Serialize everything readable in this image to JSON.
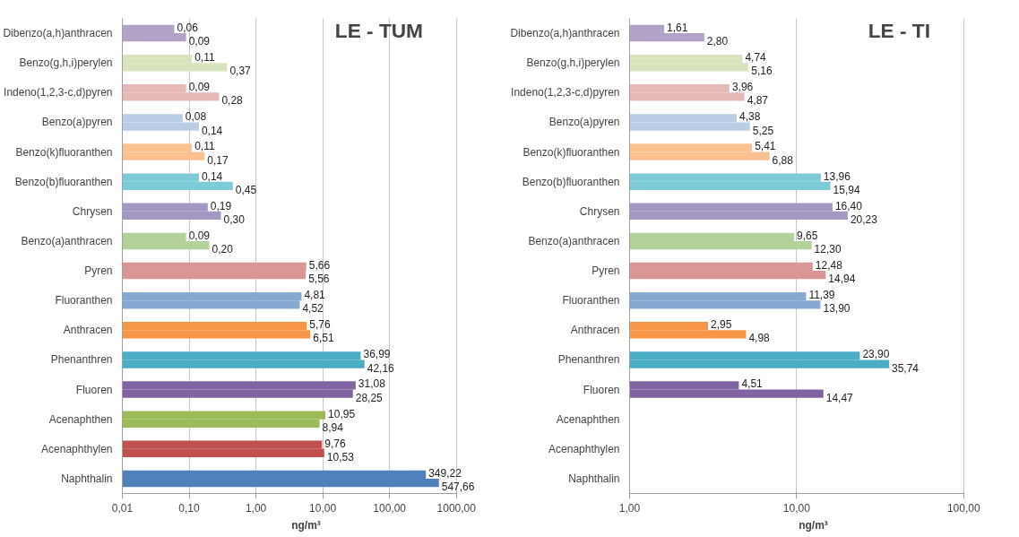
{
  "chart_data": [
    {
      "type": "bar",
      "orientation": "horizontal",
      "title": "LE - TUM",
      "xlabel": "ng/m³",
      "log": "x",
      "grid": "x",
      "categories": [
        "Dibenzo(a,h)anthracen",
        "Benzo(g,h,i)perylen",
        "Indeno(1,2,3-c,d)pyren",
        "Benzo(a)pyren",
        "Benzo(k)fluoranthen",
        "Benzo(b)fluoranthen",
        "Chrysen",
        "Benzo(a)anthracen",
        "Pyren",
        "Fluoranthen",
        "Anthracen",
        "Phenanthren",
        "Fluoren",
        "Acenaphthen",
        "Acenaphthylen",
        "Naphthalin"
      ],
      "xlim": [
        0.01,
        1000
      ],
      "xticks": [
        {
          "value": 0.01,
          "label": "0,01"
        },
        {
          "value": 0.1,
          "label": "0,10"
        },
        {
          "value": 1,
          "label": "1,00"
        },
        {
          "value": 10,
          "label": "10,00"
        },
        {
          "value": 100,
          "label": "100,00"
        },
        {
          "value": 1000,
          "label": "1000,00"
        }
      ],
      "series": [
        {
          "colors": [
            "#b3a2c7",
            "#d7e4bd",
            "#e6b9b8",
            "#b9cde5",
            "#fac090",
            "#7ecbd8",
            "#a597c4",
            "#b3d19a",
            "#d99694",
            "#86a9d1",
            "#f79646",
            "#4bacc6",
            "#8064a2",
            "#9bbb59",
            "#c0504d",
            "#4f81bd"
          ],
          "values": [
            0.06,
            0.11,
            0.09,
            0.08,
            0.11,
            0.14,
            0.19,
            0.09,
            5.66,
            4.81,
            5.76,
            36.99,
            31.08,
            10.95,
            9.76,
            349.22
          ],
          "value_labels": [
            "0,06",
            "0,11",
            "0,09",
            "0,08",
            "0,11",
            "0,14",
            "0,19",
            "0,09",
            "5,66",
            "4,81",
            "5,76",
            "36,99",
            "31,08",
            "10,95",
            "9,76",
            "349,22"
          ]
        },
        {
          "colors": [
            "#b3a2c7",
            "#d7e4bd",
            "#e6b9b8",
            "#b9cde5",
            "#fac090",
            "#7ecbd8",
            "#a597c4",
            "#b3d19a",
            "#d99694",
            "#86a9d1",
            "#f79646",
            "#4bacc6",
            "#8064a2",
            "#9bbb59",
            "#c0504d",
            "#4f81bd"
          ],
          "values": [
            0.09,
            0.37,
            0.28,
            0.14,
            0.17,
            0.45,
            0.3,
            0.2,
            5.56,
            4.52,
            6.51,
            42.16,
            28.25,
            8.94,
            10.53,
            547.66
          ],
          "value_labels": [
            "0,09",
            "0,37",
            "0,28",
            "0,14",
            "0,17",
            "0,45",
            "0,30",
            "0,20",
            "5,56",
            "4,52",
            "6,51",
            "42,16",
            "28,25",
            "8,94",
            "10,53",
            "547,66"
          ]
        }
      ]
    },
    {
      "type": "bar",
      "orientation": "horizontal",
      "title": "LE - TI",
      "xlabel": "ng/m³",
      "log": "x",
      "grid": "x",
      "categories": [
        "Dibenzo(a,h)anthracen",
        "Benzo(g,h,i)perylen",
        "Indeno(1,2,3-c,d)pyren",
        "Benzo(a)pyren",
        "Benzo(k)fluoranthen",
        "Benzo(b)fluoranthen",
        "Chrysen",
        "Benzo(a)anthracen",
        "Pyren",
        "Fluoranthen",
        "Anthracen",
        "Phenanthren",
        "Fluoren",
        "Acenaphthen",
        "Acenaphthylen",
        "Naphthalin"
      ],
      "xlim": [
        1,
        100
      ],
      "xticks": [
        {
          "value": 1,
          "label": "1,00"
        },
        {
          "value": 10,
          "label": "10,00"
        },
        {
          "value": 100,
          "label": "100,00"
        }
      ],
      "series": [
        {
          "colors": [
            "#b3a2c7",
            "#d7e4bd",
            "#e6b9b8",
            "#b9cde5",
            "#fac090",
            "#7ecbd8",
            "#a597c4",
            "#b3d19a",
            "#d99694",
            "#86a9d1",
            "#f79646",
            "#4bacc6",
            "#8064a2",
            "#9bbb59",
            "#c0504d",
            "#4f81bd"
          ],
          "values": [
            1.61,
            4.74,
            3.96,
            4.38,
            5.41,
            13.96,
            16.4,
            9.65,
            12.48,
            11.39,
            2.95,
            23.9,
            4.51,
            null,
            null,
            null
          ],
          "value_labels": [
            "1,61",
            "4,74",
            "3,96",
            "4,38",
            "5,41",
            "13,96",
            "16,40",
            "9,65",
            "12,48",
            "11,39",
            "2,95",
            "23,90",
            "4,51",
            null,
            null,
            null
          ]
        },
        {
          "colors": [
            "#b3a2c7",
            "#d7e4bd",
            "#e6b9b8",
            "#b9cde5",
            "#fac090",
            "#7ecbd8",
            "#a597c4",
            "#b3d19a",
            "#d99694",
            "#86a9d1",
            "#f79646",
            "#4bacc6",
            "#8064a2",
            "#9bbb59",
            "#c0504d",
            "#4f81bd"
          ],
          "values": [
            2.8,
            5.16,
            4.87,
            5.25,
            6.88,
            15.94,
            20.23,
            12.3,
            14.94,
            13.9,
            4.98,
            35.74,
            14.47,
            null,
            null,
            null
          ],
          "value_labels": [
            "2,80",
            "5,16",
            "4,87",
            "5,25",
            "6,88",
            "15,94",
            "20,23",
            "12,30",
            "14,94",
            "13,90",
            "4,98",
            "35,74",
            "14,47",
            null,
            null,
            null
          ]
        }
      ]
    }
  ]
}
